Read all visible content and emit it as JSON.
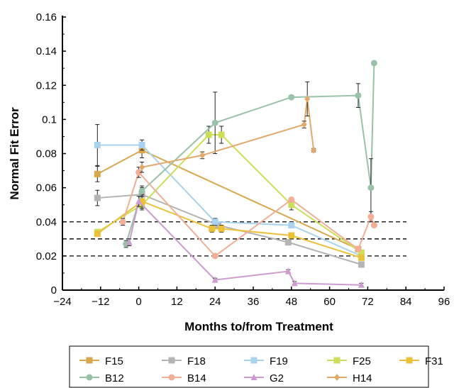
{
  "chart_data": {
    "type": "line",
    "title": "",
    "xlabel": "Months to/from Treatment",
    "ylabel": "Normal Fit Error",
    "xlim": [
      -24,
      96
    ],
    "ylim": [
      0,
      0.16
    ],
    "xticks": [
      -24,
      -12,
      0,
      12,
      24,
      36,
      48,
      60,
      72,
      84,
      96
    ],
    "xtick_labels": [
      "−24",
      "−12",
      "0",
      "12",
      "24",
      "36",
      "48",
      "60",
      "72",
      "84",
      "96"
    ],
    "yticks": [
      0,
      0.02,
      0.04,
      0.06,
      0.08,
      0.1,
      0.12,
      0.14,
      0.16
    ],
    "ytick_labels": [
      "0",
      "0.02",
      "0.04",
      "0.06",
      "0.08",
      "0.1",
      "0.12",
      "0.14",
      "0.16"
    ],
    "reference_lines": [
      0.02,
      0.03,
      0.04
    ],
    "legend_position": "bottom",
    "series": [
      {
        "name": "F15",
        "color": "#d9a84e",
        "marker": "square",
        "points": [
          [
            -13,
            0.068,
            0.0045
          ],
          [
            1,
            0.082,
            0.0045
          ],
          [
            69,
            0.024,
            0.0015
          ]
        ]
      },
      {
        "name": "F18",
        "color": "#b4b4b4",
        "marker": "square",
        "points": [
          [
            -13,
            0.054,
            0.0045
          ],
          [
            1,
            0.056,
            0.004
          ],
          [
            25,
            0.038,
            0.002
          ],
          [
            47,
            0.028,
            0.001
          ],
          [
            70,
            0.015,
            0.001
          ]
        ]
      },
      {
        "name": "F19",
        "color": "#a9d2ef",
        "marker": "square",
        "points": [
          [
            -13,
            0.085,
            0.012
          ],
          [
            1,
            0.085,
            0.003
          ],
          [
            24,
            0.04,
            0.002
          ],
          [
            48,
            0.038,
            0.001
          ],
          [
            70,
            0.02,
            0.001
          ]
        ]
      },
      {
        "name": "F25",
        "color": "#cfde5a",
        "marker": "square",
        "points": [
          [
            -13,
            0.034,
            0.001
          ],
          [
            1,
            0.05,
            0.003
          ],
          [
            22,
            0.091,
            0.005
          ],
          [
            26,
            0.091,
            0.005
          ],
          [
            48,
            0.05,
            0.003
          ],
          [
            70,
            0.022,
            0.001
          ]
        ]
      },
      {
        "name": "F31",
        "color": "#ecc13a",
        "marker": "square",
        "points": [
          [
            -13,
            0.033,
            0.001
          ],
          [
            1,
            0.052,
            0.004
          ],
          [
            23,
            0.036,
            0.002
          ],
          [
            26,
            0.036,
            0.002
          ],
          [
            48,
            0.032,
            0.001
          ],
          [
            70,
            0.019,
            0.001
          ]
        ]
      },
      {
        "name": "B12",
        "color": "#99c2a8",
        "marker": "circle",
        "points": [
          [
            -4,
            0.027,
            0.002
          ],
          [
            1,
            0.058,
            0.003
          ],
          [
            24,
            0.098,
            0.018
          ],
          [
            48,
            0.113,
            0.001
          ],
          [
            69,
            0.114,
            0.007
          ],
          [
            73,
            0.06,
            0.017
          ],
          [
            74,
            0.133,
            0.001
          ]
        ]
      },
      {
        "name": "B14",
        "color": "#f2ae96",
        "marker": "circle",
        "points": [
          [
            -5,
            0.04,
            0.002
          ],
          [
            0,
            0.069,
            0.003
          ],
          [
            24,
            0.02,
            0.001
          ],
          [
            48,
            0.053,
            0.001
          ],
          [
            69,
            0.024,
            0.001
          ],
          [
            73,
            0.043,
            0.003
          ],
          [
            74,
            0.038,
            0.001
          ]
        ]
      },
      {
        "name": "G2",
        "color": "#cc9bcf",
        "marker": "triangle",
        "points": [
          [
            -3,
            0.028,
            0.002
          ],
          [
            0,
            0.052,
            0.003
          ],
          [
            24,
            0.006,
            0.001
          ],
          [
            47,
            0.011,
            0.001
          ],
          [
            49,
            0.004,
            0.001
          ],
          [
            70,
            0.003,
            0.001
          ]
        ]
      },
      {
        "name": "H14",
        "color": "#e3a86c",
        "marker": "diamond",
        "points": [
          [
            1,
            0.072,
            0.003
          ],
          [
            20,
            0.079,
            0.002
          ],
          [
            52,
            0.097,
            0.002
          ],
          [
            53,
            0.112,
            0.01
          ],
          [
            55,
            0.082,
            0.001
          ]
        ]
      }
    ]
  }
}
